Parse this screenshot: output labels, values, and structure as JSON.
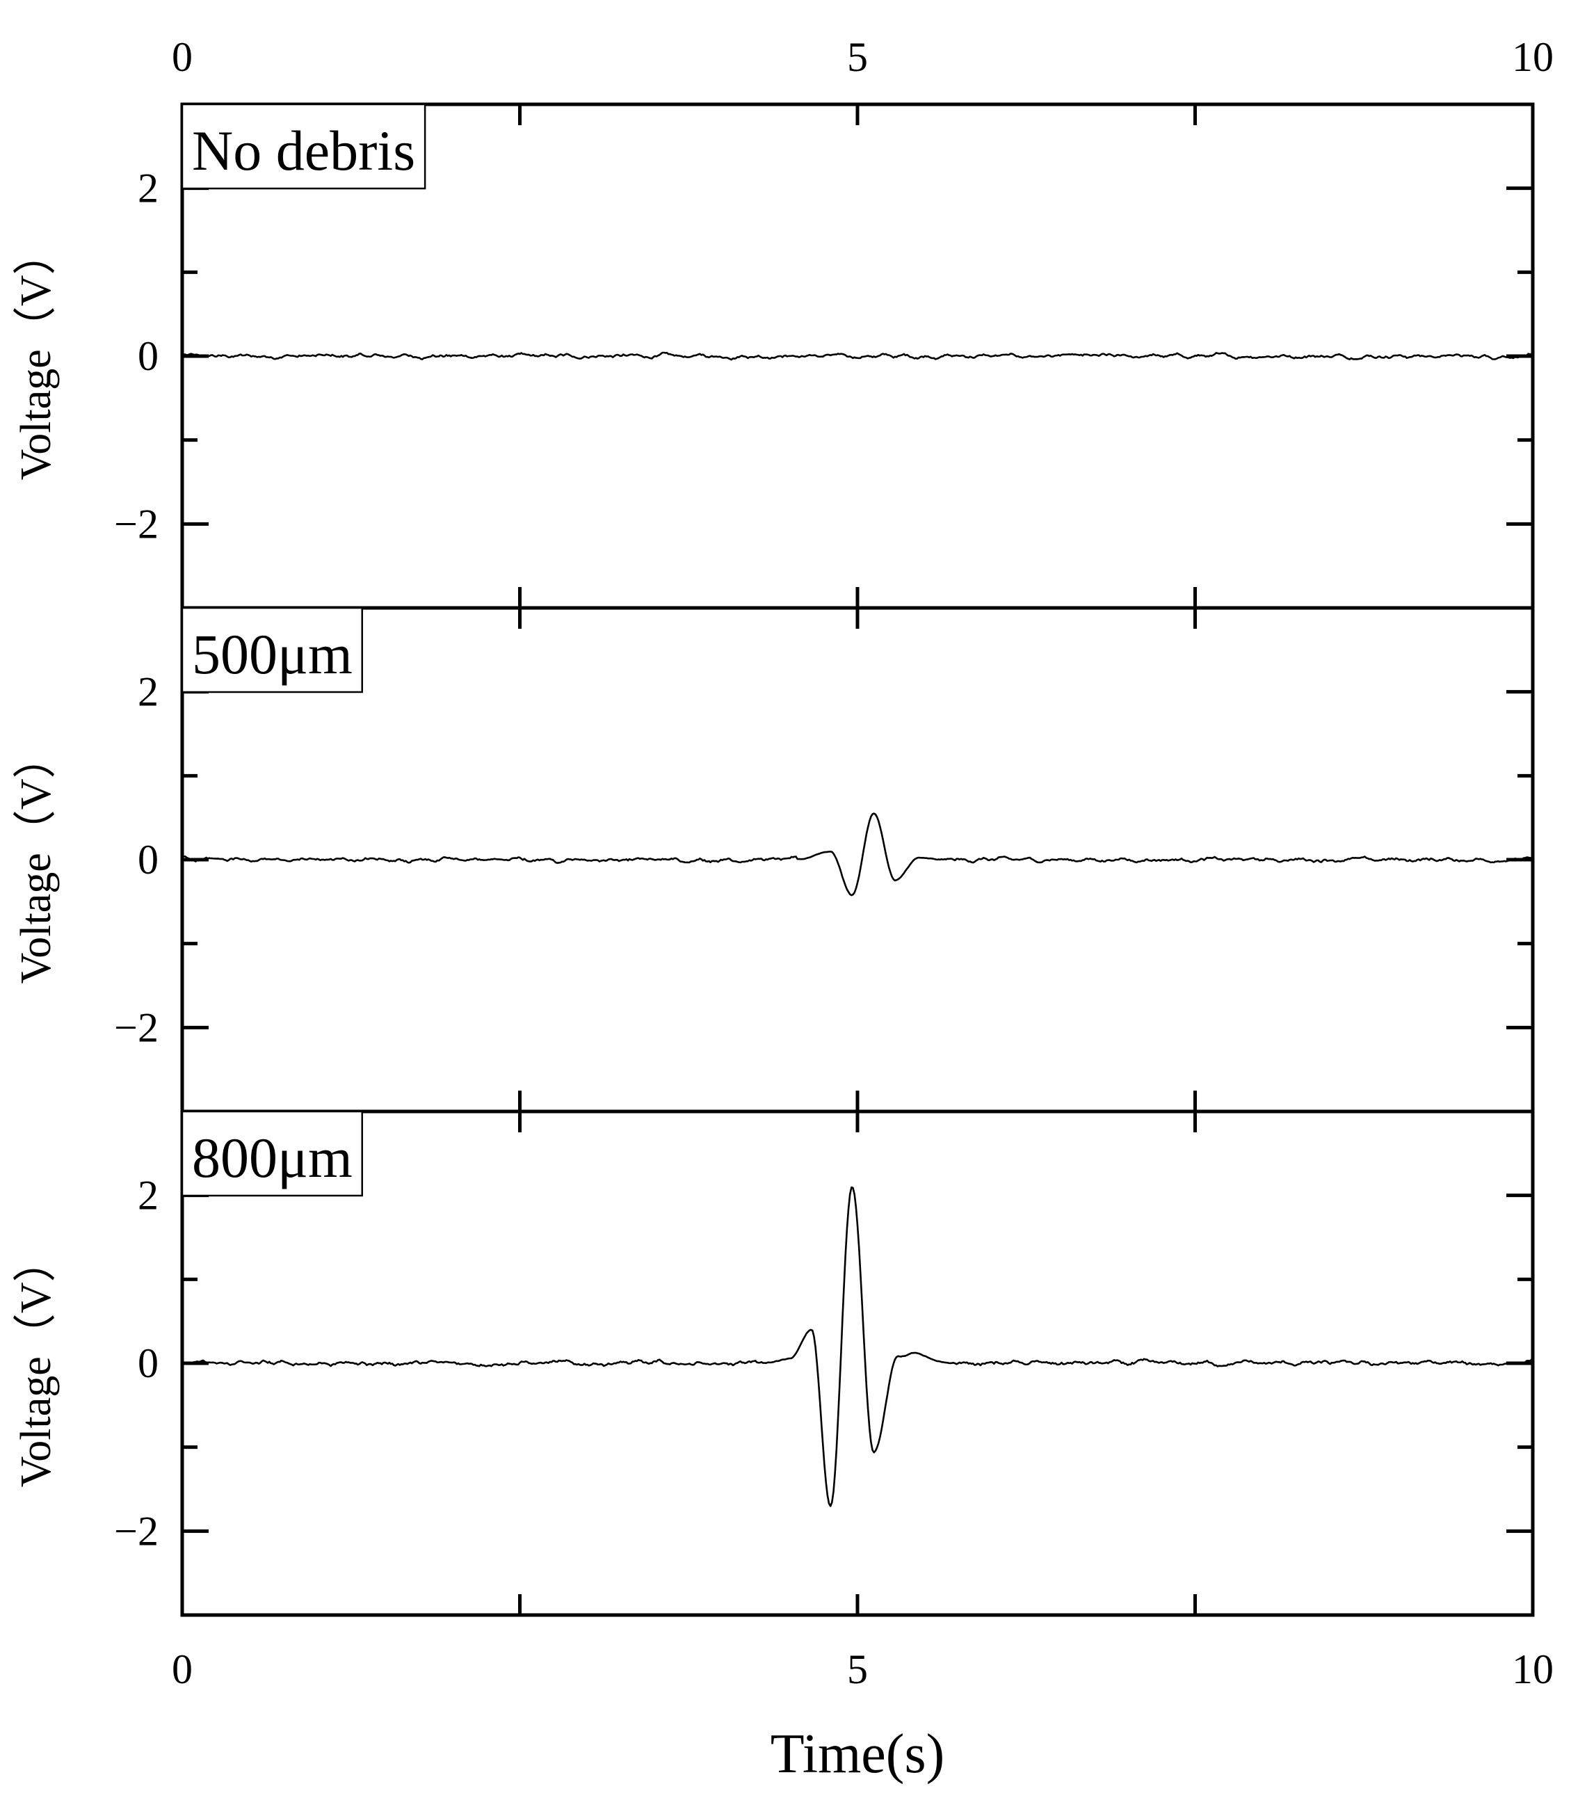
{
  "chart_data": {
    "type": "line",
    "layout": "three vertically stacked panels sharing the time axis",
    "x_axis": {
      "label": "Time(s)",
      "range": [
        0,
        10
      ],
      "ticks": [
        0,
        5,
        10
      ],
      "tick_labels": [
        "0",
        "5",
        "10"
      ],
      "minor_ticks": [
        2.5,
        7.5
      ],
      "shown_on": [
        "top",
        "bottom"
      ]
    },
    "panels": [
      {
        "label": "No debris",
        "ylabel": "Voltage（V）",
        "ylim": [
          -3,
          3
        ],
        "yticks": [
          -2,
          0,
          2
        ],
        "ytick_labels": [
          "−2",
          "0",
          "2"
        ],
        "noise_amplitude": 0.03,
        "pulse": null
      },
      {
        "label": "500μm",
        "ylabel": "Voltage（V）",
        "ylim": [
          -3,
          3
        ],
        "yticks": [
          -2,
          0,
          2
        ],
        "ytick_labels": [
          "−2",
          "0",
          "2"
        ],
        "noise_amplitude": 0.03,
        "pulse": {
          "keypoints": [
            [
              4.55,
              0.0
            ],
            [
              4.8,
              0.1
            ],
            [
              4.96,
              -0.42
            ],
            [
              5.12,
              0.55
            ],
            [
              5.28,
              -0.25
            ],
            [
              5.45,
              0.02
            ],
            [
              5.6,
              0.0
            ]
          ]
        }
      },
      {
        "label": "800μm",
        "ylabel": "Voltage（V）",
        "ylim": [
          -3,
          3
        ],
        "yticks": [
          -2,
          0,
          2
        ],
        "ytick_labels": [
          "−2",
          "0",
          "2"
        ],
        "noise_amplitude": 0.035,
        "pulse": {
          "keypoints": [
            [
              4.3,
              0.0
            ],
            [
              4.5,
              0.05
            ],
            [
              4.66,
              0.4
            ],
            [
              4.8,
              -1.7
            ],
            [
              4.96,
              2.1
            ],
            [
              5.12,
              -1.05
            ],
            [
              5.3,
              0.08
            ],
            [
              5.42,
              0.12
            ],
            [
              5.6,
              0.02
            ],
            [
              5.7,
              0.0
            ]
          ]
        }
      }
    ]
  }
}
